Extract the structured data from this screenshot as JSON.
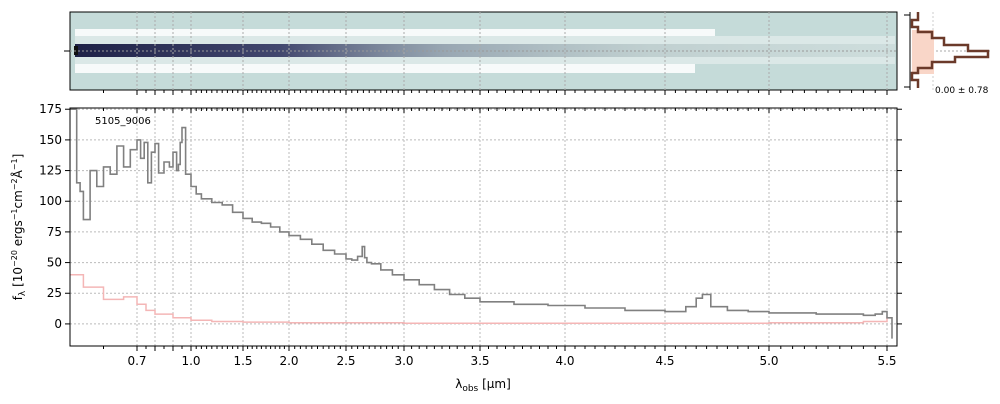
{
  "chart_data": {
    "type": "line",
    "object_label": "5105_9006",
    "xlabel": "λ_obs [μm]",
    "ylabel": "f_λ [10^-20 erg s^-1 cm^-2 Å^-1]",
    "ylim": [
      -18,
      176
    ],
    "yticks": [
      0,
      25,
      50,
      75,
      100,
      125,
      150,
      175
    ],
    "xticks": [
      0.7,
      0.8,
      0.9,
      1.0,
      1.5,
      2.0,
      2.5,
      3.0,
      3.5,
      4.0,
      4.5,
      5.0,
      5.5
    ],
    "xtick_labels": [
      "0.7",
      "",
      "",
      "1.0",
      "1.5",
      "2.0",
      "2.5",
      "3.0",
      "3.5",
      "4.0",
      "4.5",
      "5.0",
      "5.5"
    ],
    "grid": true,
    "histogram_annotation": "0.00 ± 0.78",
    "colors": {
      "flux": "#808080",
      "error": "#f4b6b6",
      "image_bg": "#c5dbd9",
      "trace": "#2b2f55",
      "hist": "#6b3a2a",
      "hist_fill": "#f9d6c8"
    },
    "series": [
      {
        "role": "flux",
        "x": [
          0.6,
          0.61,
          0.615,
          0.62,
          0.63,
          0.64,
          0.65,
          0.66,
          0.67,
          0.68,
          0.69,
          0.7,
          0.72,
          0.74,
          0.76,
          0.78,
          0.8,
          0.82,
          0.85,
          0.88,
          0.9,
          0.92,
          0.93,
          0.94,
          0.95,
          0.97,
          1.0,
          1.05,
          1.1,
          1.2,
          1.3,
          1.4,
          1.5,
          1.6,
          1.7,
          1.8,
          1.9,
          2.0,
          2.1,
          2.2,
          2.3,
          2.4,
          2.5,
          2.55,
          2.6,
          2.64,
          2.66,
          2.68,
          2.72,
          2.8,
          2.9,
          3.0,
          3.1,
          3.2,
          3.3,
          3.4,
          3.5,
          3.7,
          3.9,
          4.1,
          4.3,
          4.5,
          4.6,
          4.65,
          4.68,
          4.72,
          4.8,
          4.9,
          5.0,
          5.2,
          5.4,
          5.45,
          5.48,
          5.5,
          5.51
        ],
        "y": [
          175,
          115,
          108,
          85,
          125,
          112,
          128,
          122,
          145,
          128,
          142,
          150,
          135,
          148,
          115,
          140,
          147,
          123,
          132,
          128,
          140,
          125,
          130,
          148,
          160,
          122,
          112,
          106,
          102,
          99,
          97,
          91,
          86,
          83,
          82,
          79,
          75,
          72,
          69,
          65,
          60,
          57,
          53,
          52,
          55,
          63,
          54,
          50,
          49,
          44,
          40,
          36,
          32,
          28,
          24,
          21,
          18,
          16,
          15,
          13,
          11,
          10,
          14,
          21,
          24,
          14,
          11,
          10,
          9,
          8,
          7,
          8,
          10,
          5,
          -12
        ]
      },
      {
        "role": "error",
        "x": [
          0.6,
          0.62,
          0.65,
          0.68,
          0.7,
          0.75,
          0.8,
          0.9,
          1.0,
          1.2,
          1.5,
          2.0,
          3.0,
          4.0,
          5.0,
          5.4,
          5.5
        ],
        "y": [
          40,
          30,
          20,
          22,
          16,
          11,
          8,
          5,
          3,
          2,
          1.5,
          1,
          0.5,
          0.5,
          1,
          2,
          6
        ]
      }
    ]
  }
}
